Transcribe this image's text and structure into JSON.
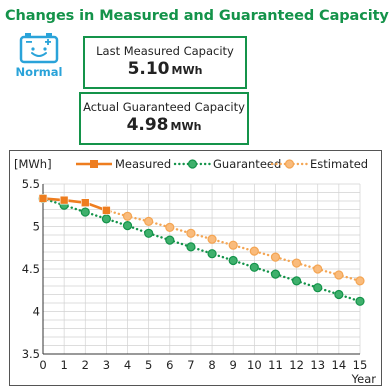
{
  "header": {
    "title": "Changes in Measured and Guaranteed Capacity"
  },
  "status": {
    "label": "Normal",
    "icon": "battery-smile-icon",
    "color": "#2aa3d9"
  },
  "measured": {
    "label": "Last Measured Capacity",
    "value": "5.10",
    "unit": "MWh"
  },
  "guaranteed": {
    "label": "Actual Guaranteed Capacity",
    "value": "4.98",
    "unit": "MWh"
  },
  "colors": {
    "measured": "#ee7d1f",
    "guaranteed": "#14934a",
    "estimated": "#f4a553",
    "accent": "#14934a"
  },
  "chart_data": {
    "type": "line",
    "ylabel": "[MWh]",
    "xlabel": "Year",
    "ylim": [
      3.5,
      5.5
    ],
    "xlim": [
      0,
      15
    ],
    "y_ticks": [
      "3.5",
      "4",
      "4.5",
      "5",
      "5.5"
    ],
    "x_ticks": [
      "0",
      "1",
      "2",
      "3",
      "4",
      "5",
      "6",
      "7",
      "8",
      "9",
      "10",
      "11",
      "12",
      "13",
      "14",
      "15"
    ],
    "grid": true,
    "legend": "top",
    "series": [
      {
        "name": "Measured",
        "style": "solid",
        "x": [
          0,
          1,
          2,
          3
        ],
        "y": [
          5.33,
          5.31,
          5.28,
          5.19
        ]
      },
      {
        "name": "Guaranteed",
        "style": "dotted",
        "x": [
          0,
          1,
          2,
          3,
          4,
          5,
          6,
          7,
          8,
          9,
          10,
          11,
          12,
          13,
          14,
          15
        ],
        "y": [
          5.33,
          5.25,
          5.17,
          5.09,
          5.01,
          4.92,
          4.84,
          4.76,
          4.68,
          4.6,
          4.52,
          4.44,
          4.36,
          4.28,
          4.2,
          4.12
        ]
      },
      {
        "name": "Estimated",
        "style": "dotted",
        "x": [
          3,
          4,
          5,
          6,
          7,
          8,
          9,
          10,
          11,
          12,
          13,
          14,
          15
        ],
        "y": [
          5.19,
          5.12,
          5.06,
          4.99,
          4.92,
          4.85,
          4.78,
          4.71,
          4.64,
          4.57,
          4.5,
          4.43,
          4.36
        ]
      }
    ]
  }
}
